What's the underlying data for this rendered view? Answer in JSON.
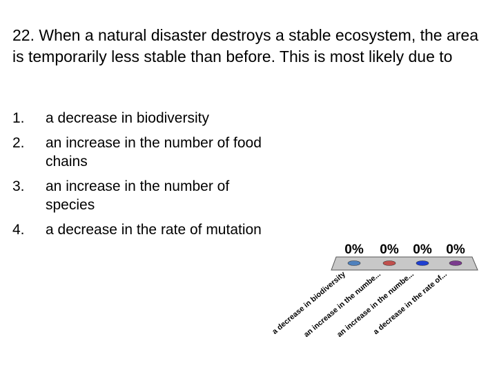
{
  "question": {
    "text": "22. When a natural disaster destroys a stable ecosystem, the area is temporarily less stable than before. This is most likely due to"
  },
  "choices": [
    {
      "number": "1.",
      "text": "a decrease in biodiversity"
    },
    {
      "number": "2.",
      "text": "an increase in the number of food chains"
    },
    {
      "number": "3.",
      "text": "an increase in the number of species"
    },
    {
      "number": "4.",
      "text": "a decrease in the rate of mutation"
    }
  ],
  "chart_data": {
    "type": "bar",
    "categories": [
      "a decrease in biodiversity",
      "an increase in the numbe...",
      "an increase in the numbe...",
      "a decrease in the rate of..."
    ],
    "values": [
      0,
      0,
      0,
      0
    ],
    "value_labels": [
      "0%",
      "0%",
      "0%",
      "0%"
    ],
    "ylim": [
      0,
      100
    ],
    "bar_colors": [
      "#4f81bd",
      "#c0504d",
      "#1f3fd0",
      "#7b3b8e"
    ],
    "floor_color": "#c8c8c8",
    "title": "",
    "xlabel": "",
    "ylabel": ""
  }
}
